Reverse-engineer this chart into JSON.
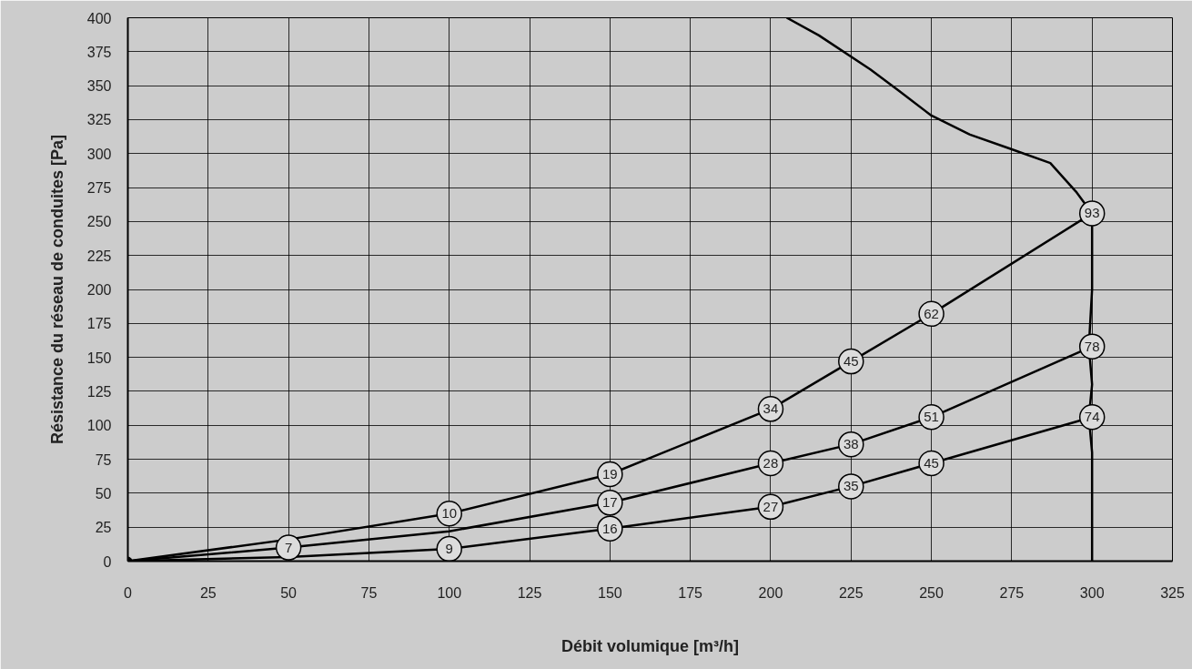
{
  "chart_data": {
    "type": "line",
    "xlabel": "Débit volumique [m³/h]",
    "ylabel": "Résistance du réseau de conduites [Pa]",
    "xlim": [
      0,
      325
    ],
    "xticks": [
      0,
      25,
      50,
      75,
      100,
      125,
      150,
      175,
      200,
      225,
      250,
      275,
      300,
      325
    ],
    "ylim": [
      0,
      400
    ],
    "yticks": [
      0,
      25,
      50,
      75,
      100,
      125,
      150,
      175,
      200,
      225,
      250,
      275,
      300,
      325,
      350,
      375,
      400
    ],
    "grid": true,
    "series": [
      {
        "color": "#000000",
        "x": [
          205,
          215,
          231,
          240,
          250,
          262,
          274,
          287,
          295,
          300,
          300,
          299,
          300,
          299,
          300,
          300
        ],
        "values": [
          400,
          387,
          362,
          346,
          328,
          314,
          304,
          293,
          272,
          256,
          200,
          158,
          130,
          106,
          80,
          0
        ]
      },
      {
        "color": "#000000",
        "x": [
          0,
          50,
          100,
          150,
          200,
          225,
          250,
          300
        ],
        "values": [
          0,
          16,
          35,
          64,
          112,
          147,
          182,
          256
        ]
      },
      {
        "color": "#000000",
        "x": [
          0,
          50,
          100,
          150,
          200,
          225,
          250,
          300
        ],
        "values": [
          0,
          10,
          22,
          43,
          72,
          86,
          106,
          158
        ]
      },
      {
        "color": "#000000",
        "x": [
          0,
          50,
          100,
          150,
          200,
          225,
          250,
          300
        ],
        "values": [
          0,
          3,
          9,
          24,
          40,
          55,
          72,
          106
        ]
      },
      {
        "type": "scatter",
        "color": "#000000",
        "x": [
          0
        ],
        "values": [
          0
        ]
      }
    ],
    "annotations": [
      {
        "text": "10",
        "x": 100,
        "y": 35
      },
      {
        "text": "19",
        "x": 150,
        "y": 64
      },
      {
        "text": "34",
        "x": 200,
        "y": 112
      },
      {
        "text": "45",
        "x": 225,
        "y": 147
      },
      {
        "text": "62",
        "x": 250,
        "y": 182
      },
      {
        "text": "93",
        "x": 300,
        "y": 256
      },
      {
        "text": "7",
        "x": 50,
        "y": 10
      },
      {
        "text": "17",
        "x": 150,
        "y": 43
      },
      {
        "text": "28",
        "x": 200,
        "y": 72
      },
      {
        "text": "38",
        "x": 225,
        "y": 86
      },
      {
        "text": "51",
        "x": 250,
        "y": 106
      },
      {
        "text": "78",
        "x": 300,
        "y": 158
      },
      {
        "text": "9",
        "x": 100,
        "y": 9
      },
      {
        "text": "16",
        "x": 150,
        "y": 24
      },
      {
        "text": "27",
        "x": 200,
        "y": 40
      },
      {
        "text": "35",
        "x": 225,
        "y": 55
      },
      {
        "text": "45",
        "x": 250,
        "y": 72
      },
      {
        "text": "74",
        "x": 300,
        "y": 106
      }
    ]
  }
}
